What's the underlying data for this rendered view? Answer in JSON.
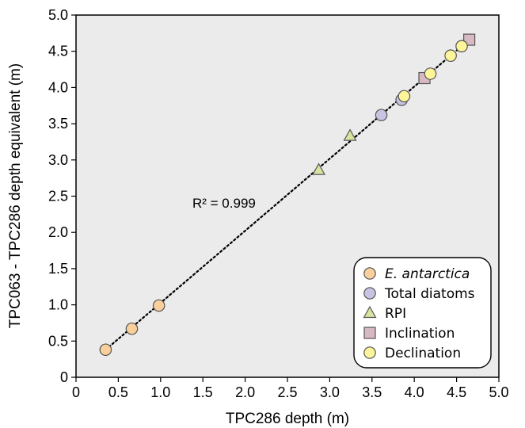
{
  "chart_data": {
    "type": "scatter",
    "title": "",
    "xlabel": "TPC286 depth (m)",
    "ylabel": "TPC063 - TPC286 depth equivalent (m)",
    "xlim": [
      0,
      5.0
    ],
    "ylim": [
      0,
      5.0
    ],
    "x_ticks": [
      "0",
      "0.5",
      "1.0",
      "1.5",
      "2.0",
      "2.5",
      "3.0",
      "3.5",
      "4.0",
      "4.5",
      "5.0"
    ],
    "y_ticks": [
      "0",
      "0.5",
      "1.0",
      "1.5",
      "2.0",
      "2.5",
      "3.0",
      "3.5",
      "4.0",
      "4.5",
      "5.0"
    ],
    "grid": false,
    "legend_position": "bottom-right",
    "annotation": "R² = 0.999",
    "trendline": {
      "style": "dotted",
      "x": [
        0.35,
        4.65
      ],
      "y": [
        0.38,
        4.66
      ]
    },
    "series": [
      {
        "name": "E. antarctica",
        "marker": "circle",
        "color": "#f9cf9b",
        "italic": true,
        "x": [
          0.35,
          0.66,
          0.98
        ],
        "y": [
          0.38,
          0.67,
          0.99
        ]
      },
      {
        "name": "Total diatoms",
        "marker": "circle",
        "color": "#c8c3e0",
        "italic": false,
        "x": [
          3.61,
          3.85
        ],
        "y": [
          3.62,
          3.83
        ]
      },
      {
        "name": "RPI",
        "marker": "triangle",
        "color": "#d8e3a0",
        "italic": false,
        "x": [
          2.87,
          3.24
        ],
        "y": [
          2.86,
          3.33
        ]
      },
      {
        "name": "Inclination",
        "marker": "square",
        "color": "#d7b9c2",
        "italic": false,
        "x": [
          4.12,
          4.65
        ],
        "y": [
          4.13,
          4.66
        ]
      },
      {
        "name": "Declination",
        "marker": "circle",
        "color": "#fdf59a",
        "italic": false,
        "x": [
          3.88,
          4.19,
          4.43,
          4.56
        ],
        "y": [
          3.88,
          4.19,
          4.44,
          4.57
        ]
      }
    ]
  }
}
